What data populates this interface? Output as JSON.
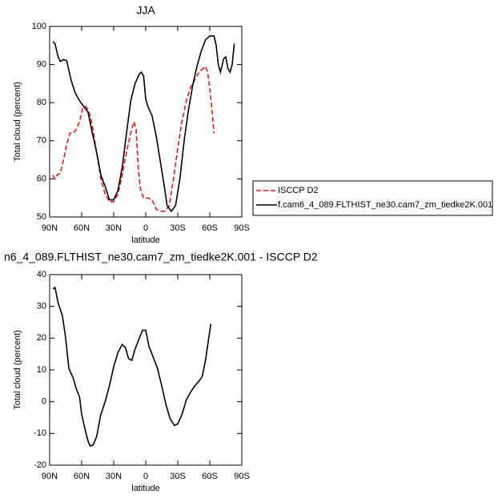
{
  "chart_data": [
    {
      "type": "line",
      "title": "JJA",
      "xlabel": "latitude",
      "ylabel": "Total cloud (percent)",
      "xlim": [
        90,
        -90
      ],
      "xticks": [
        {
          "value": 90,
          "label": "90N"
        },
        {
          "value": 60,
          "label": "60N"
        },
        {
          "value": 30,
          "label": "30N"
        },
        0,
        {
          "value": -30,
          "label": "30S"
        },
        {
          "value": -60,
          "label": "60S"
        },
        {
          "value": -90,
          "label": "90S"
        }
      ],
      "ylim": [
        50,
        100
      ],
      "yticks": [
        50,
        60,
        70,
        80,
        90,
        100
      ],
      "series": [
        {
          "name": "ISCCP D2",
          "color": "#e41a1c",
          "dashed": true,
          "x": [
            87,
            85,
            83,
            80,
            77,
            74,
            71,
            68,
            65,
            62,
            59,
            56,
            53,
            50,
            46,
            42,
            38,
            34,
            30,
            26,
            22,
            18,
            14,
            11,
            9,
            7,
            5,
            2,
            -2,
            -6,
            -10,
            -14,
            -18,
            -22,
            -26,
            -30,
            -34,
            -38,
            -42,
            -46,
            -50,
            -54,
            -56,
            -58,
            -60,
            -62,
            -64
          ],
          "values": [
            61,
            60,
            61,
            61.5,
            65,
            69,
            72,
            72,
            73,
            75,
            78.5,
            79,
            77.5,
            74,
            67,
            60,
            56,
            54,
            54,
            56,
            61,
            67,
            72,
            75,
            73,
            63,
            57.5,
            55,
            55,
            54.5,
            52,
            51.5,
            51.5,
            53,
            60,
            68,
            75,
            80.5,
            84,
            86,
            88,
            89,
            89.5,
            88,
            84,
            78,
            72
          ]
        },
        {
          "name": "f.cam6_4_089.FLTHIST_ne30.cam7_zm_tiedke2K.001",
          "color": "#000000",
          "dashed": false,
          "x": [
            87,
            85,
            82,
            80,
            77,
            74,
            70,
            66,
            62,
            58,
            54,
            50,
            46,
            42,
            38,
            34,
            30,
            26,
            22,
            18,
            14,
            10,
            6,
            4,
            2,
            0,
            -2,
            -6,
            -10,
            -14,
            -18,
            -20,
            -24,
            -28,
            -32,
            -36,
            -40,
            -44,
            -48,
            -52,
            -56,
            -60,
            -64,
            -66,
            -68,
            -70,
            -73,
            -75,
            -77,
            -79,
            -81,
            -83
          ],
          "values": [
            96,
            95.5,
            92,
            90.8,
            91.3,
            91,
            86,
            82.5,
            80.5,
            79,
            77.5,
            72,
            67,
            61,
            58,
            54.5,
            54.5,
            57,
            63,
            72,
            80.5,
            85,
            87.5,
            88,
            87,
            81,
            79,
            76.5,
            71,
            64,
            57,
            53,
            51.5,
            53,
            60,
            70,
            78,
            84.5,
            89.5,
            93.5,
            96.5,
            97.5,
            97.5,
            95,
            90,
            88,
            91.5,
            92,
            89,
            88,
            90,
            95.5
          ]
        }
      ]
    },
    {
      "type": "line",
      "title": "n6_4_089.FLTHIST_ne30.cam7_zm_tiedke2K.001 - ISCCP D2",
      "xlabel": "latitude",
      "ylabel": "Total cloud (percent)",
      "xlim": [
        90,
        -90
      ],
      "xticks": [
        {
          "value": 90,
          "label": "90N"
        },
        {
          "value": 60,
          "label": "60N"
        },
        {
          "value": 30,
          "label": "30N"
        },
        0,
        {
          "value": -30,
          "label": "30S"
        },
        {
          "value": -60,
          "label": "60S"
        },
        {
          "value": -90,
          "label": "90S"
        }
      ],
      "ylim": [
        -20,
        40
      ],
      "yticks": [
        -20,
        -10,
        0,
        10,
        20,
        30,
        40
      ],
      "series": [
        {
          "color": "#000000",
          "dashed": false,
          "x": [
            87,
            85,
            82,
            78,
            75,
            72,
            68,
            65,
            62,
            60,
            57,
            54,
            52,
            49,
            46,
            42,
            38,
            34,
            30,
            26,
            22,
            19,
            16,
            13,
            10,
            6,
            3,
            0,
            -3,
            -7,
            -11,
            -15,
            -19,
            -23,
            -27,
            -30,
            -34,
            -38,
            -42,
            -46,
            -50,
            -53,
            -56,
            -59,
            -61
          ],
          "values": [
            35.5,
            36,
            31,
            27,
            20,
            10.5,
            7.5,
            4,
            1.5,
            -4,
            -8.5,
            -12.5,
            -14,
            -13.5,
            -11,
            -4,
            0,
            5,
            11,
            15.5,
            18,
            17,
            13.5,
            13,
            16.5,
            20,
            22.5,
            22.5,
            17.5,
            14,
            10.5,
            5,
            -1,
            -5.5,
            -7.5,
            -7,
            -4,
            0.5,
            3,
            5,
            6.5,
            8,
            13,
            20,
            24.5
          ]
        }
      ]
    }
  ]
}
